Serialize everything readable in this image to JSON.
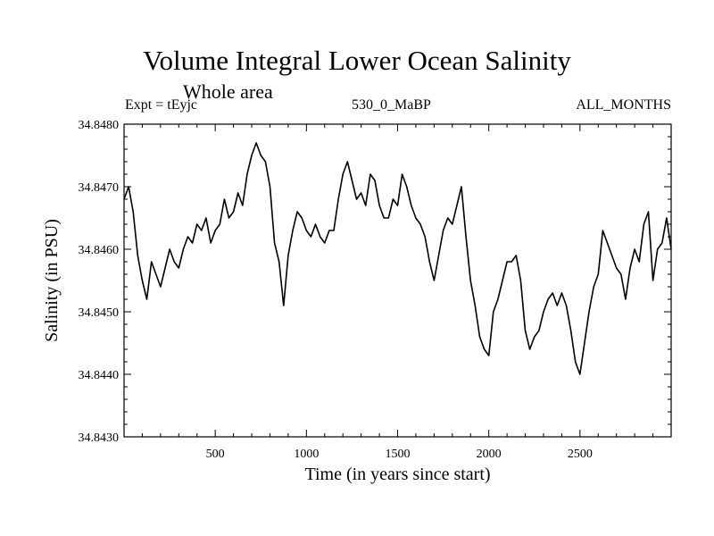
{
  "chart_data": {
    "type": "line",
    "title": "Volume Integral Lower Ocean Salinity",
    "subtitle": "Whole area",
    "header_left": "Expt = tEyjc",
    "header_center": "530_0_MaBP",
    "header_right": "ALL_MONTHS",
    "xlabel": "Time (in years since start)",
    "ylabel": "Salinity (in PSU)",
    "xlim": [
      0,
      3000
    ],
    "ylim": [
      34.843,
      34.848
    ],
    "x_ticks": [
      500,
      1000,
      1500,
      2000,
      2500
    ],
    "x_tick_labels": [
      "500",
      "1000",
      "1500",
      "2000",
      "2500"
    ],
    "y_ticks": [
      34.843,
      34.844,
      34.845,
      34.846,
      34.847,
      34.848
    ],
    "y_tick_labels": [
      "34.8430",
      "34.8440",
      "34.8450",
      "34.8460",
      "34.8470",
      "34.8480"
    ],
    "grid": false,
    "series": [
      {
        "name": "Salinity",
        "color": "#000000",
        "x": [
          0,
          25,
          50,
          75,
          100,
          125,
          150,
          175,
          200,
          225,
          250,
          275,
          300,
          325,
          350,
          375,
          400,
          425,
          450,
          475,
          500,
          525,
          550,
          575,
          600,
          625,
          650,
          675,
          700,
          725,
          750,
          775,
          800,
          825,
          850,
          875,
          900,
          925,
          950,
          975,
          1000,
          1025,
          1050,
          1075,
          1100,
          1125,
          1150,
          1175,
          1200,
          1225,
          1250,
          1275,
          1300,
          1325,
          1350,
          1375,
          1400,
          1425,
          1450,
          1475,
          1500,
          1525,
          1550,
          1575,
          1600,
          1625,
          1650,
          1675,
          1700,
          1725,
          1750,
          1775,
          1800,
          1825,
          1850,
          1875,
          1900,
          1925,
          1950,
          1975,
          2000,
          2025,
          2050,
          2075,
          2100,
          2125,
          2150,
          2175,
          2200,
          2225,
          2250,
          2275,
          2300,
          2325,
          2350,
          2375,
          2400,
          2425,
          2450,
          2475,
          2500,
          2525,
          2550,
          2575,
          2600,
          2625,
          2650,
          2675,
          2700,
          2725,
          2750,
          2775,
          2800,
          2825,
          2850,
          2875,
          2900,
          2925,
          2950,
          2975,
          3000
        ],
        "y": [
          34.8468,
          34.847,
          34.8466,
          34.8459,
          34.8455,
          34.8452,
          34.8458,
          34.8456,
          34.8454,
          34.8457,
          34.846,
          34.8458,
          34.8457,
          34.846,
          34.8462,
          34.8461,
          34.8464,
          34.8463,
          34.8465,
          34.8461,
          34.8463,
          34.8464,
          34.8468,
          34.8465,
          34.8466,
          34.8469,
          34.8467,
          34.8472,
          34.8475,
          34.8477,
          34.8475,
          34.8474,
          34.847,
          34.8461,
          34.8458,
          34.8451,
          34.8459,
          34.8463,
          34.8466,
          34.8465,
          34.8463,
          34.8462,
          34.8464,
          34.8462,
          34.8461,
          34.8463,
          34.8463,
          34.8468,
          34.8472,
          34.8474,
          34.8471,
          34.8468,
          34.8469,
          34.8467,
          34.8472,
          34.8471,
          34.8467,
          34.8465,
          34.8465,
          34.8468,
          34.8467,
          34.8472,
          34.847,
          34.8467,
          34.8465,
          34.8464,
          34.8462,
          34.8458,
          34.8455,
          34.8459,
          34.8463,
          34.8465,
          34.8464,
          34.8467,
          34.847,
          34.8462,
          34.8455,
          34.8451,
          34.8446,
          34.8444,
          34.8443,
          34.845,
          34.8452,
          34.8455,
          34.8458,
          34.8458,
          34.8459,
          34.8455,
          34.8447,
          34.8444,
          34.8446,
          34.8447,
          34.845,
          34.8452,
          34.8453,
          34.8451,
          34.8453,
          34.8451,
          34.8447,
          34.8442,
          34.844,
          34.8445,
          34.845,
          34.8454,
          34.8456,
          34.8463,
          34.8461,
          34.8459,
          34.8457,
          34.8456,
          34.8452,
          34.8457,
          34.846,
          34.8458,
          34.8464,
          34.8466,
          34.8455,
          34.846,
          34.8461,
          34.8465,
          34.846
        ]
      }
    ]
  }
}
